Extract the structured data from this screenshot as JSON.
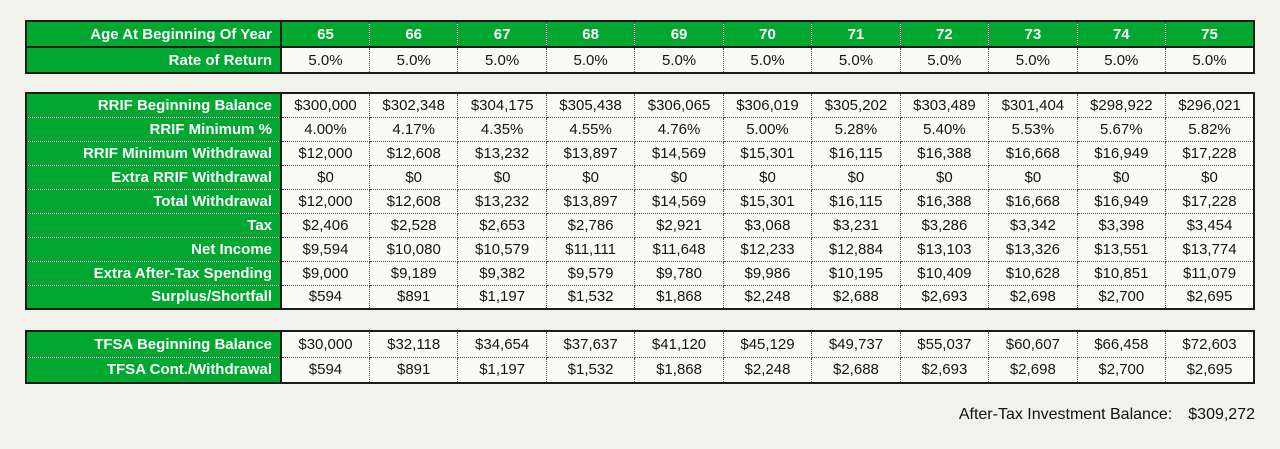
{
  "colors": {
    "header_green": "#00A832",
    "page_background": "#F2F2EC",
    "cell_background": "#FBFBF6"
  },
  "tables": [
    {
      "id": "age-rate-table",
      "rows": [
        {
          "name": "age-at-beginning-of-year",
          "label": "Age At Beginning Of Year",
          "variant": "green",
          "values": [
            "65",
            "66",
            "67",
            "68",
            "69",
            "70",
            "71",
            "72",
            "73",
            "74",
            "75"
          ]
        },
        {
          "name": "rate-of-return",
          "label": "Rate of Return",
          "variant": "data",
          "values": [
            "5.0%",
            "5.0%",
            "5.0%",
            "5.0%",
            "5.0%",
            "5.0%",
            "5.0%",
            "5.0%",
            "5.0%",
            "5.0%",
            "5.0%"
          ]
        }
      ]
    },
    {
      "id": "rrif-table",
      "rows": [
        {
          "name": "rrif-beginning-balance",
          "label": "RRIF Beginning Balance",
          "variant": "data",
          "values": [
            "$300,000",
            "$302,348",
            "$304,175",
            "$305,438",
            "$306,065",
            "$306,019",
            "$305,202",
            "$303,489",
            "$301,404",
            "$298,922",
            "$296,021"
          ]
        },
        {
          "name": "rrif-minimum-pct",
          "label": "RRIF Minimum %",
          "variant": "data",
          "values": [
            "4.00%",
            "4.17%",
            "4.35%",
            "4.55%",
            "4.76%",
            "5.00%",
            "5.28%",
            "5.40%",
            "5.53%",
            "5.67%",
            "5.82%"
          ]
        },
        {
          "name": "rrif-minimum-withdrawal",
          "label": "RRIF Minimum Withdrawal",
          "variant": "data",
          "values": [
            "$12,000",
            "$12,608",
            "$13,232",
            "$13,897",
            "$14,569",
            "$15,301",
            "$16,115",
            "$16,388",
            "$16,668",
            "$16,949",
            "$17,228"
          ]
        },
        {
          "name": "extra-rrif-withdrawal",
          "label": "Extra RRIF Withdrawal",
          "variant": "data",
          "values": [
            "$0",
            "$0",
            "$0",
            "$0",
            "$0",
            "$0",
            "$0",
            "$0",
            "$0",
            "$0",
            "$0"
          ]
        },
        {
          "name": "total-withdrawal",
          "label": "Total Withdrawal",
          "variant": "data",
          "values": [
            "$12,000",
            "$12,608",
            "$13,232",
            "$13,897",
            "$14,569",
            "$15,301",
            "$16,115",
            "$16,388",
            "$16,668",
            "$16,949",
            "$17,228"
          ]
        },
        {
          "name": "tax",
          "label": "Tax",
          "variant": "data",
          "values": [
            "$2,406",
            "$2,528",
            "$2,653",
            "$2,786",
            "$2,921",
            "$3,068",
            "$3,231",
            "$3,286",
            "$3,342",
            "$3,398",
            "$3,454"
          ]
        },
        {
          "name": "net-income",
          "label": "Net Income",
          "variant": "data",
          "values": [
            "$9,594",
            "$10,080",
            "$10,579",
            "$11,111",
            "$11,648",
            "$12,233",
            "$12,884",
            "$13,103",
            "$13,326",
            "$13,551",
            "$13,774"
          ]
        },
        {
          "name": "extra-after-tax-spending",
          "label": "Extra After-Tax Spending",
          "variant": "data",
          "values": [
            "$9,000",
            "$9,189",
            "$9,382",
            "$9,579",
            "$9,780",
            "$9,986",
            "$10,195",
            "$10,409",
            "$10,628",
            "$10,851",
            "$11,079"
          ]
        },
        {
          "name": "surplus-shortfall",
          "label": "Surplus/Shortfall",
          "variant": "data",
          "values": [
            "$594",
            "$891",
            "$1,197",
            "$1,532",
            "$1,868",
            "$2,248",
            "$2,688",
            "$2,693",
            "$2,698",
            "$2,700",
            "$2,695"
          ]
        }
      ]
    },
    {
      "id": "tfsa-table",
      "rows": [
        {
          "name": "tfsa-beginning-balance",
          "label": "TFSA Beginning Balance",
          "variant": "data",
          "values": [
            "$30,000",
            "$32,118",
            "$34,654",
            "$37,637",
            "$41,120",
            "$45,129",
            "$49,737",
            "$55,037",
            "$60,607",
            "$66,458",
            "$72,603"
          ]
        },
        {
          "name": "tfsa-cont-withdrawal",
          "label": "TFSA Cont./Withdrawal",
          "variant": "data",
          "values": [
            "$594",
            "$891",
            "$1,197",
            "$1,532",
            "$1,868",
            "$2,248",
            "$2,688",
            "$2,693",
            "$2,698",
            "$2,700",
            "$2,695"
          ]
        }
      ]
    }
  ],
  "footer": {
    "label": "After-Tax Investment Balance:",
    "value": "$309,272"
  }
}
